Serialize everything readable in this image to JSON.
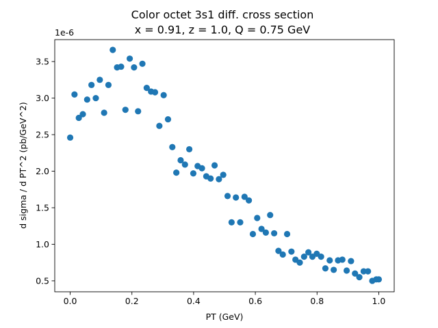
{
  "chart_data": {
    "type": "scatter",
    "title_lines": [
      "Color octet 3s1 diff. cross section",
      "x = 0.91, z = 1.0, Q = 0.75 GeV"
    ],
    "xlabel": "PT (GeV)",
    "ylabel": "d sigma / d PT^2 (pb/GeV^2)",
    "y_offset_text": "1e-6",
    "xlim": [
      -0.05,
      1.05
    ],
    "ylim": [
      0.35,
      3.8
    ],
    "xticks": [
      0.0,
      0.2,
      0.4,
      0.6,
      0.8,
      1.0
    ],
    "xtick_labels": [
      "0.0",
      "0.2",
      "0.4",
      "0.6",
      "0.8",
      "1.0"
    ],
    "yticks": [
      0.5,
      1.0,
      1.5,
      2.0,
      2.5,
      3.0,
      3.5
    ],
    "ytick_labels": [
      "0.5",
      "1.0",
      "1.5",
      "2.0",
      "2.5",
      "3.0",
      "3.5"
    ],
    "grid": false,
    "color": "#1f77b4",
    "x": [
      0.0,
      0.014,
      0.028,
      0.041,
      0.055,
      0.069,
      0.083,
      0.096,
      0.11,
      0.124,
      0.138,
      0.152,
      0.165,
      0.179,
      0.193,
      0.207,
      0.22,
      0.234,
      0.248,
      0.262,
      0.275,
      0.289,
      0.303,
      0.317,
      0.331,
      0.344,
      0.358,
      0.372,
      0.386,
      0.399,
      0.413,
      0.427,
      0.441,
      0.455,
      0.468,
      0.482,
      0.496,
      0.51,
      0.523,
      0.537,
      0.551,
      0.565,
      0.579,
      0.592,
      0.606,
      0.62,
      0.634,
      0.648,
      0.661,
      0.675,
      0.689,
      0.703,
      0.717,
      0.73,
      0.744,
      0.758,
      0.772,
      0.785,
      0.799,
      0.813,
      0.827,
      0.841,
      0.854,
      0.868,
      0.882,
      0.896,
      0.91,
      0.923,
      0.937,
      0.951,
      0.965,
      0.979,
      0.992,
      1.0
    ],
    "y": [
      2.46,
      3.05,
      2.73,
      2.78,
      2.98,
      3.18,
      3.0,
      3.25,
      2.8,
      3.18,
      3.66,
      3.42,
      3.43,
      2.84,
      3.54,
      3.42,
      2.82,
      3.47,
      3.14,
      3.09,
      3.08,
      2.62,
      3.04,
      2.71,
      2.33,
      1.98,
      2.15,
      2.09,
      2.3,
      1.97,
      2.07,
      2.04,
      1.93,
      1.9,
      2.08,
      1.89,
      1.95,
      1.66,
      1.3,
      1.64,
      1.3,
      1.65,
      1.6,
      1.14,
      1.36,
      1.21,
      1.16,
      1.4,
      1.15,
      0.91,
      0.86,
      1.14,
      0.9,
      0.79,
      0.75,
      0.83,
      0.89,
      0.83,
      0.87,
      0.83,
      0.67,
      0.78,
      0.65,
      0.78,
      0.79,
      0.64,
      0.77,
      0.6,
      0.55,
      0.63,
      0.63,
      0.5,
      0.52,
      0.52
    ]
  }
}
